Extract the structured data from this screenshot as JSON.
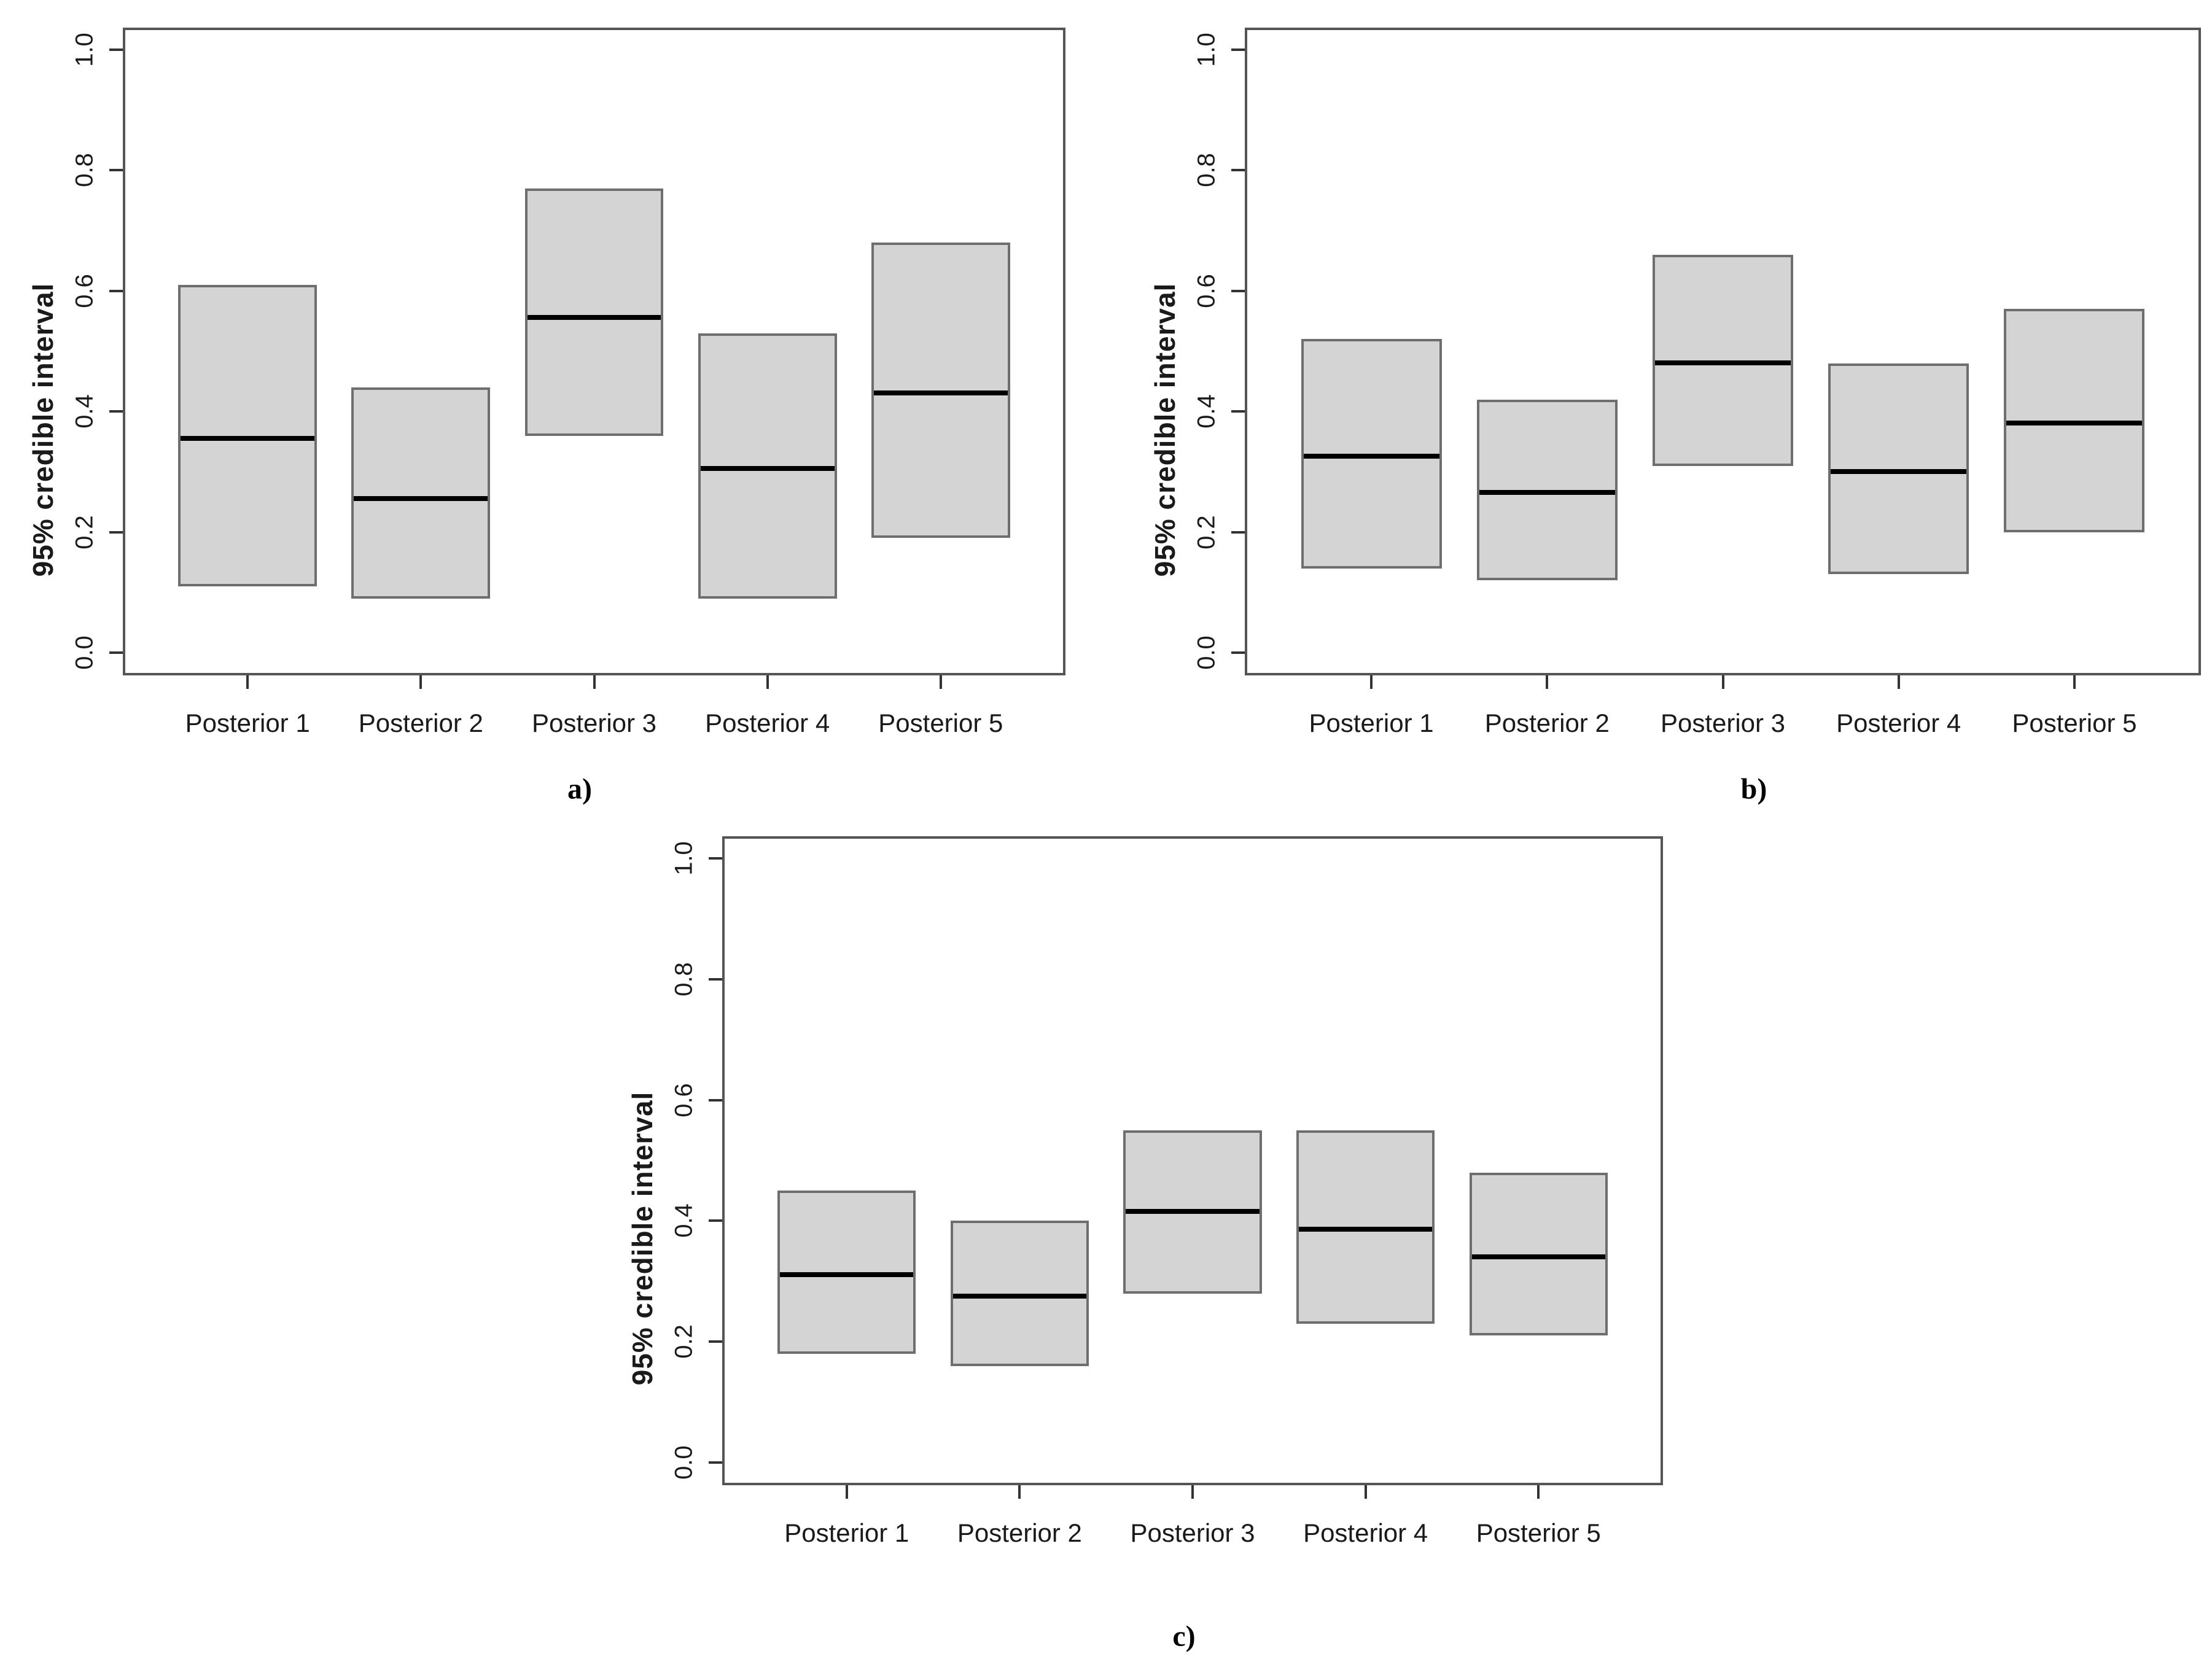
{
  "figure": {
    "background": "#ffffff",
    "ylabel": "95% credible interval",
    "categories": [
      "Posterior 1",
      "Posterior 2",
      "Posterior 3",
      "Posterior 4",
      "Posterior 5"
    ],
    "ytick_labels": [
      "0.0",
      "0.2",
      "0.4",
      "0.6",
      "0.8",
      "1.0"
    ],
    "colors": {
      "box_fill": "#d4d4d4",
      "box_border": "#6e6e6e",
      "median_line": "#000000",
      "axis": "#555555",
      "text": "#1a1a1a"
    }
  },
  "chart_data": [
    {
      "panel": "a)",
      "type": "bar",
      "variant": "credible-interval-box",
      "ylabel": "95% credible interval",
      "ylim": [
        0.0,
        1.0
      ],
      "yticks": [
        "0.0",
        "0.2",
        "0.4",
        "0.6",
        "0.8",
        "1.0"
      ],
      "grid": "off",
      "categories": [
        "Posterior 1",
        "Posterior 2",
        "Posterior 3",
        "Posterior 4",
        "Posterior 5"
      ],
      "intervals": [
        {
          "lower": 0.11,
          "median": 0.36,
          "upper": 0.61
        },
        {
          "lower": 0.09,
          "median": 0.26,
          "upper": 0.44
        },
        {
          "lower": 0.36,
          "median": 0.56,
          "upper": 0.77
        },
        {
          "lower": 0.09,
          "median": 0.31,
          "upper": 0.53
        },
        {
          "lower": 0.19,
          "median": 0.435,
          "upper": 0.68
        }
      ]
    },
    {
      "panel": "b)",
      "type": "bar",
      "variant": "credible-interval-box",
      "ylabel": "95% credible interval",
      "ylim": [
        0.0,
        1.0
      ],
      "yticks": [
        "0.0",
        "0.2",
        "0.4",
        "0.6",
        "0.8",
        "1.0"
      ],
      "grid": "off",
      "categories": [
        "Posterior 1",
        "Posterior 2",
        "Posterior 3",
        "Posterior 4",
        "Posterior 5"
      ],
      "intervals": [
        {
          "lower": 0.14,
          "median": 0.33,
          "upper": 0.52
        },
        {
          "lower": 0.12,
          "median": 0.27,
          "upper": 0.42
        },
        {
          "lower": 0.31,
          "median": 0.485,
          "upper": 0.66
        },
        {
          "lower": 0.13,
          "median": 0.305,
          "upper": 0.48
        },
        {
          "lower": 0.2,
          "median": 0.385,
          "upper": 0.57
        }
      ]
    },
    {
      "panel": "c)",
      "type": "bar",
      "variant": "credible-interval-box",
      "ylabel": "95% credible interval",
      "ylim": [
        0.0,
        1.0
      ],
      "yticks": [
        "0.0",
        "0.2",
        "0.4",
        "0.6",
        "0.8",
        "1.0"
      ],
      "grid": "off",
      "categories": [
        "Posterior 1",
        "Posterior 2",
        "Posterior 3",
        "Posterior 4",
        "Posterior 5"
      ],
      "intervals": [
        {
          "lower": 0.18,
          "median": 0.315,
          "upper": 0.45
        },
        {
          "lower": 0.16,
          "median": 0.28,
          "upper": 0.4
        },
        {
          "lower": 0.28,
          "median": 0.42,
          "upper": 0.55
        },
        {
          "lower": 0.23,
          "median": 0.39,
          "upper": 0.55
        },
        {
          "lower": 0.21,
          "median": 0.345,
          "upper": 0.48
        }
      ]
    }
  ]
}
